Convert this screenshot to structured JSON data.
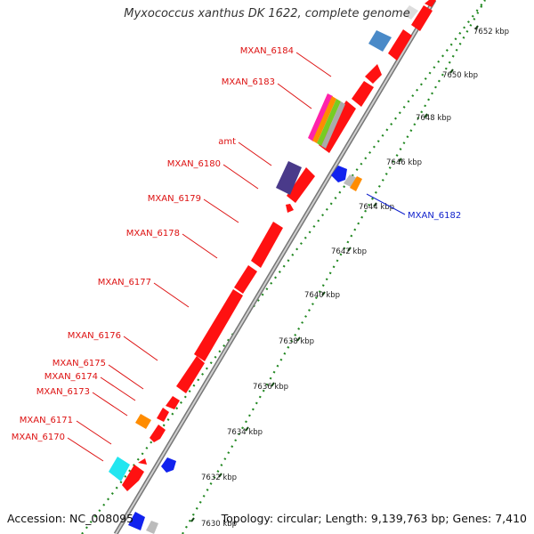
{
  "title": "Myxococcus xanthus DK 1622, complete genome",
  "accession": "Accession: NC_008095",
  "summary": "Topology: circular; Length: 9,139,763 bp; Genes: 7,410",
  "colors": {
    "gene": "#ff1111",
    "label_red": "#dd1111",
    "label_blue": "#1122cc",
    "backbone": "#999999",
    "tick_dots": "#228822"
  },
  "ticks": [
    "7630 kbp",
    "7632 kbp",
    "7634 kbp",
    "7636 kbp",
    "7638 kbp",
    "7640 kbp",
    "7642 kbp",
    "7644 kbp",
    "7646 kbp",
    "7648 kbp",
    "7650 kbp",
    "7652 kbp"
  ],
  "gene_labels": [
    {
      "name": "MXAN_6184",
      "color": "red"
    },
    {
      "name": "MXAN_6183",
      "color": "red"
    },
    {
      "name": "amt",
      "color": "red"
    },
    {
      "name": "MXAN_6180",
      "color": "red"
    },
    {
      "name": "MXAN_6179",
      "color": "red"
    },
    {
      "name": "MXAN_6178",
      "color": "red"
    },
    {
      "name": "MXAN_6177",
      "color": "red"
    },
    {
      "name": "MXAN_6176",
      "color": "red"
    },
    {
      "name": "MXAN_6175",
      "color": "red"
    },
    {
      "name": "MXAN_6174",
      "color": "red"
    },
    {
      "name": "MXAN_6173",
      "color": "red"
    },
    {
      "name": "MXAN_6171",
      "color": "red"
    },
    {
      "name": "MXAN_6170",
      "color": "red"
    },
    {
      "name": "MXAN_6182",
      "color": "blue"
    }
  ]
}
